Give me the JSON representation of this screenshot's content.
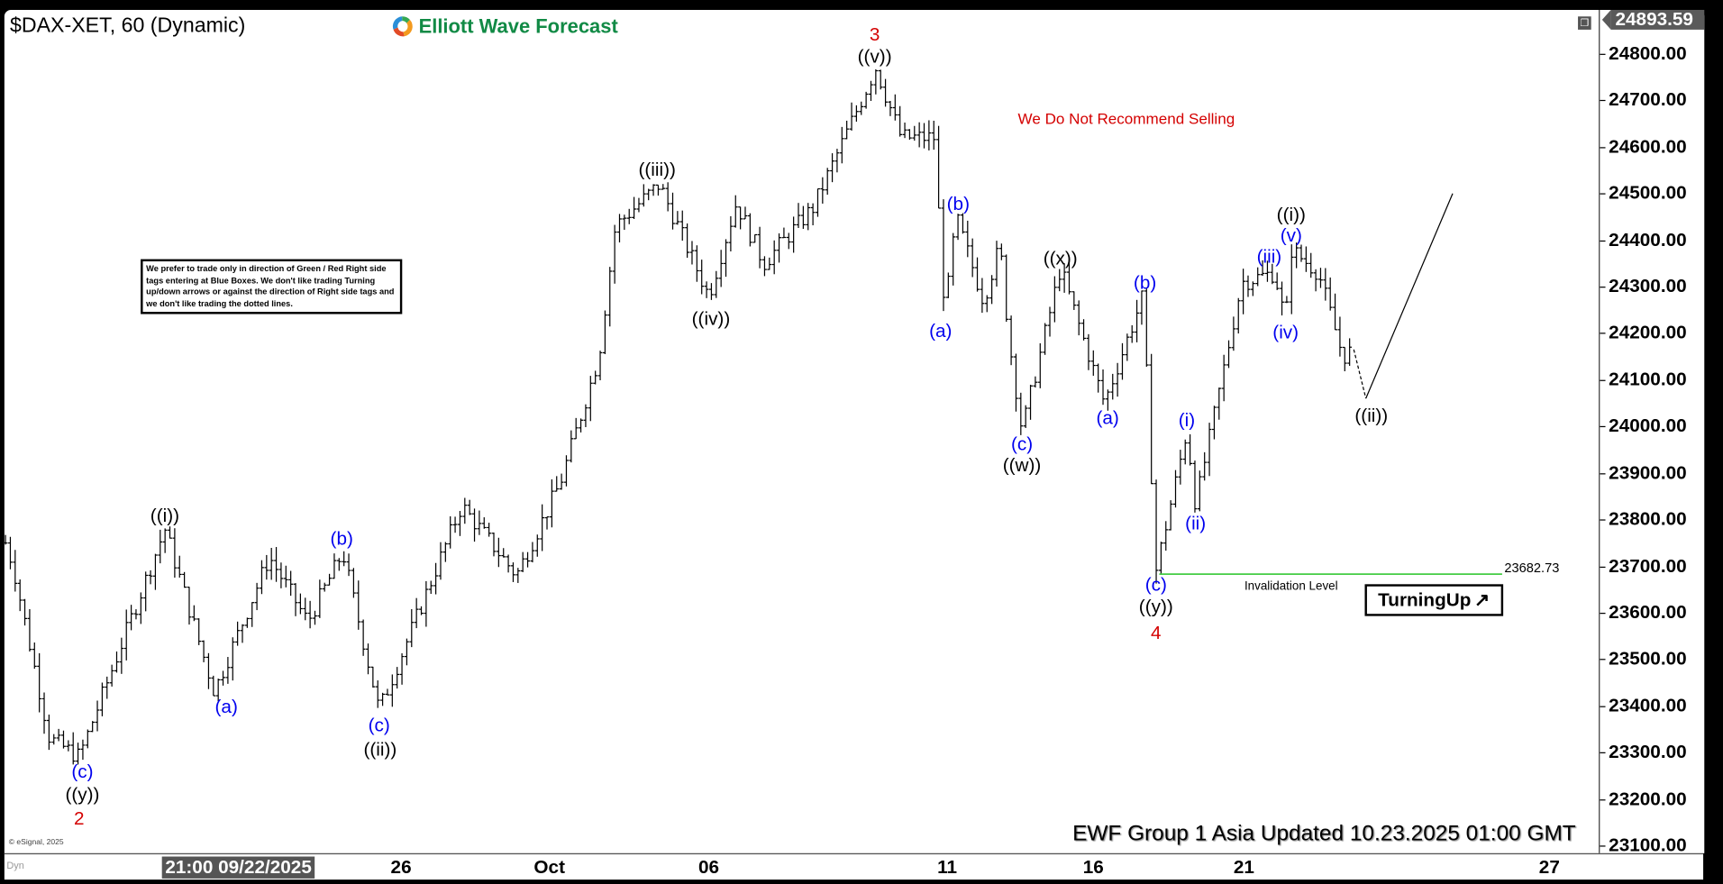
{
  "header": {
    "title": "$DAX-XET, 60 (Dynamic)",
    "logo_text": "Elliott Wave Forecast",
    "current_price": "24893.59"
  },
  "chart_data": {
    "type": "ohlc",
    "symbol": "$DAX-XET",
    "interval": "60",
    "ylim": [
      23100,
      24893.59
    ],
    "y_ticks": [
      "24800.00",
      "24700.00",
      "24600.00",
      "24500.00",
      "24400.00",
      "24300.00",
      "24200.00",
      "24100.00",
      "24000.00",
      "23900.00",
      "23800.00",
      "23700.00",
      "23600.00",
      "23500.00",
      "23400.00",
      "23300.00",
      "23200.00",
      "23100.00"
    ],
    "x_ticks": [
      "21:00 09/22/2025",
      "26",
      "Oct",
      "06",
      "11",
      "16",
      "21",
      "27"
    ],
    "pivots": [
      {
        "t": "09/18",
        "price": 23750
      },
      {
        "t": "09/19",
        "price": 23700
      },
      {
        "t": "09/19",
        "price": 23330
      },
      {
        "t": "09/22",
        "price": 23290
      },
      {
        "t": "09/23",
        "price": 23780
      },
      {
        "t": "09/23",
        "price": 23430
      },
      {
        "t": "09/24",
        "price": 23720
      },
      {
        "t": "09/24",
        "price": 23580
      },
      {
        "t": "09/25",
        "price": 23730
      },
      {
        "t": "09/25",
        "price": 23390
      },
      {
        "t": "09/29",
        "price": 23830
      },
      {
        "t": "09/30",
        "price": 23680
      },
      {
        "t": "10/01",
        "price": 23880
      },
      {
        "t": "10/02",
        "price": 24150
      },
      {
        "t": "10/02",
        "price": 24430
      },
      {
        "t": "10/03",
        "price": 24520
      },
      {
        "t": "10/06",
        "price": 24280
      },
      {
        "t": "10/06",
        "price": 24480
      },
      {
        "t": "10/07",
        "price": 24350
      },
      {
        "t": "10/08",
        "price": 24470
      },
      {
        "t": "10/09",
        "price": 24770
      },
      {
        "t": "10/09",
        "price": 24620
      },
      {
        "t": "10/10",
        "price": 24620
      },
      {
        "t": "10/10",
        "price": 24240
      },
      {
        "t": "10/13",
        "price": 24450
      },
      {
        "t": "10/13",
        "price": 24270
      },
      {
        "t": "10/13",
        "price": 24390
      },
      {
        "t": "10/14",
        "price": 24190
      },
      {
        "t": "10/14",
        "price": 23990
      },
      {
        "t": "10/15",
        "price": 24340
      },
      {
        "t": "10/16",
        "price": 24050
      },
      {
        "t": "10/17",
        "price": 24280
      },
      {
        "t": "10/17",
        "price": 23690
      },
      {
        "t": "10/20",
        "price": 23990
      },
      {
        "t": "10/20",
        "price": 23830
      },
      {
        "t": "10/21",
        "price": 24310
      },
      {
        "t": "10/21",
        "price": 24330
      },
      {
        "t": "10/22",
        "price": 24220
      },
      {
        "t": "10/22",
        "price": 24380
      },
      {
        "t": "10/22",
        "price": 24330
      },
      {
        "t": "10/22",
        "price": 24150
      },
      {
        "t": "10/23",
        "price": 24165
      }
    ],
    "projection": {
      "dotted_to": 24060,
      "solid_to": 24500
    },
    "invalidation": {
      "price": "23682.73",
      "label": "Invalidation Level",
      "color": "#44cc44"
    },
    "wave_labels": [
      {
        "text": "3",
        "color": "red"
      },
      {
        "text": "((v))",
        "color": "black"
      },
      {
        "text": "((iii))",
        "color": "black"
      },
      {
        "text": "((iv))",
        "color": "black"
      },
      {
        "text": "((i))",
        "color": "black"
      },
      {
        "text": "(b)",
        "color": "blue"
      },
      {
        "text": "(a)",
        "color": "blue"
      },
      {
        "text": "(c)",
        "color": "blue"
      },
      {
        "text": "((ii))",
        "color": "black"
      },
      {
        "text": "(c)",
        "color": "blue"
      },
      {
        "text": "((y))",
        "color": "black"
      },
      {
        "text": "2",
        "color": "red"
      },
      {
        "text": "(b)",
        "color": "blue"
      },
      {
        "text": "(a)",
        "color": "blue"
      },
      {
        "text": "((x))",
        "color": "black"
      },
      {
        "text": "(c)",
        "color": "blue"
      },
      {
        "text": "((w))",
        "color": "black"
      },
      {
        "text": "(b)",
        "color": "blue"
      },
      {
        "text": "(a)",
        "color": "blue"
      },
      {
        "text": "(c)",
        "color": "blue"
      },
      {
        "text": "((y))",
        "color": "black"
      },
      {
        "text": "4",
        "color": "red"
      },
      {
        "text": "(i)",
        "color": "blue"
      },
      {
        "text": "(ii)",
        "color": "blue"
      },
      {
        "text": "(iii)",
        "color": "blue"
      },
      {
        "text": "(iv)",
        "color": "blue"
      },
      {
        "text": "(v)",
        "color": "blue"
      },
      {
        "text": "((i))",
        "color": "black"
      },
      {
        "text": "((ii))",
        "color": "black"
      }
    ]
  },
  "annotations": {
    "selling_warning": "We Do Not Recommend Selling",
    "note": "We prefer to trade only in direction of Green / Red Right side tags entering at Blue Boxes. We don't like trading Turning up/down arrows or against the direction of Right side tags and we don't like trading the dotted lines.",
    "turning_label": "TurningUp",
    "turning_arrow": "↗",
    "update": "EWF Group 1 Asia Updated 10.23.2025 01:00 GMT",
    "copyright": "© eSignal, 2025",
    "dyn": "Dyn"
  },
  "colors": {
    "blue_label": "#0000ee",
    "red_label": "#d40000",
    "logo_green": "#118a45",
    "invalidation": "#44cc44"
  }
}
